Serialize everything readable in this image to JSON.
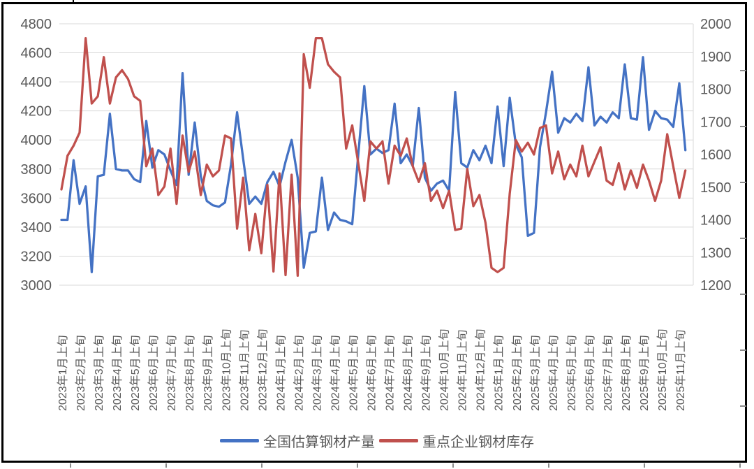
{
  "chart_data": {
    "type": "line",
    "title": "",
    "grid": "horizontal-only",
    "legend_position": "bottom-center",
    "points_per_month": 3,
    "x_tick_labels": [
      "2023年1月上旬",
      "2023年2月上旬",
      "2023年3月上旬",
      "2023年4月上旬",
      "2023年5月上旬",
      "2023年6月上旬",
      "2023年7月上旬",
      "2023年8月上旬",
      "2023年9月上旬",
      "2023年10月上旬",
      "2023年11月上旬",
      "2023年12月上旬",
      "2024年1月上旬",
      "2024年2月上旬",
      "2024年3月上旬",
      "2024年4月上旬",
      "2024年5月上旬",
      "2024年6月上旬",
      "2024年7月上旬",
      "2024年8月上旬",
      "2024年9月上旬",
      "2024年10月上旬",
      "2024年11月上旬",
      "2024年12月上旬",
      "2025年1月上旬",
      "2025年2月上旬",
      "2025年3月上旬",
      "2025年4月上旬",
      "2025年5月上旬",
      "2025年6月上旬",
      "2025年7月上旬",
      "2025年8月上旬",
      "2025年9月上旬",
      "2025年10月上旬",
      "2025年11月上旬"
    ],
    "left_axis": {
      "min": 3000,
      "max": 4800,
      "step": 200,
      "ticks": [
        "4800",
        "4600",
        "4400",
        "4200",
        "4000",
        "3800",
        "3600",
        "3400",
        "3200",
        "3000"
      ]
    },
    "right_axis": {
      "min": 1200,
      "max": 2000,
      "step": 100,
      "ticks": [
        "2000",
        "1900",
        "1800",
        "1700",
        "1600",
        "1500",
        "1400",
        "1300",
        "1200"
      ]
    },
    "series": [
      {
        "name": "全国估算钢材产量",
        "axis": "left",
        "color": "#4472C4",
        "values": [
          3450,
          3450,
          3860,
          3560,
          3680,
          3090,
          3750,
          3760,
          4180,
          3800,
          3790,
          3790,
          3730,
          3710,
          4130,
          3810,
          3930,
          3900,
          3790,
          3690,
          4460,
          3760,
          4120,
          3750,
          3580,
          3550,
          3540,
          3570,
          3830,
          4190,
          3870,
          3560,
          3610,
          3560,
          3710,
          3780,
          3680,
          3850,
          4000,
          3740,
          3120,
          3360,
          3370,
          3740,
          3380,
          3500,
          3450,
          3440,
          3420,
          3900,
          4370,
          3900,
          3940,
          3910,
          3930,
          4250,
          3840,
          3900,
          3820,
          4220,
          3740,
          3650,
          3700,
          3720,
          3650,
          4330,
          3840,
          3810,
          3930,
          3860,
          3960,
          3840,
          4230,
          3820,
          4290,
          3970,
          3880,
          3340,
          3360,
          3950,
          4190,
          4470,
          4050,
          4150,
          4120,
          4180,
          4130,
          4500,
          4100,
          4160,
          4120,
          4190,
          4150,
          4520,
          4150,
          4140,
          4570,
          4070,
          4200,
          4150,
          4140,
          4090,
          4390,
          3930
        ]
      },
      {
        "name": "重点企业钢材库存",
        "axis": "right",
        "color": "#C0504D",
        "values": [
          1493,
          1596,
          1627,
          1667,
          1956,
          1756,
          1778,
          1898,
          1756,
          1836,
          1858,
          1831,
          1778,
          1764,
          1564,
          1618,
          1476,
          1502,
          1618,
          1449,
          1658,
          1547,
          1609,
          1476,
          1569,
          1533,
          1551,
          1658,
          1649,
          1373,
          1529,
          1307,
          1418,
          1298,
          1507,
          1242,
          1542,
          1231,
          1538,
          1229,
          1907,
          1804,
          1956,
          1956,
          1876,
          1853,
          1836,
          1618,
          1689,
          1573,
          1458,
          1640,
          1618,
          1640,
          1511,
          1627,
          1596,
          1649,
          1564,
          1516,
          1573,
          1458,
          1489,
          1436,
          1489,
          1369,
          1373,
          1556,
          1442,
          1476,
          1391,
          1253,
          1240,
          1253,
          1480,
          1644,
          1609,
          1636,
          1600,
          1681,
          1689,
          1542,
          1609,
          1524,
          1569,
          1533,
          1627,
          1533,
          1578,
          1622,
          1520,
          1507,
          1573,
          1493,
          1551,
          1498,
          1569,
          1520,
          1458,
          1520,
          1662,
          1564,
          1467,
          1551
        ]
      }
    ]
  },
  "styles": {
    "grid_color": "#D9D9D9",
    "axis_text_color": "#595959",
    "frame_color": "#000000",
    "background": "#FFFFFF"
  }
}
